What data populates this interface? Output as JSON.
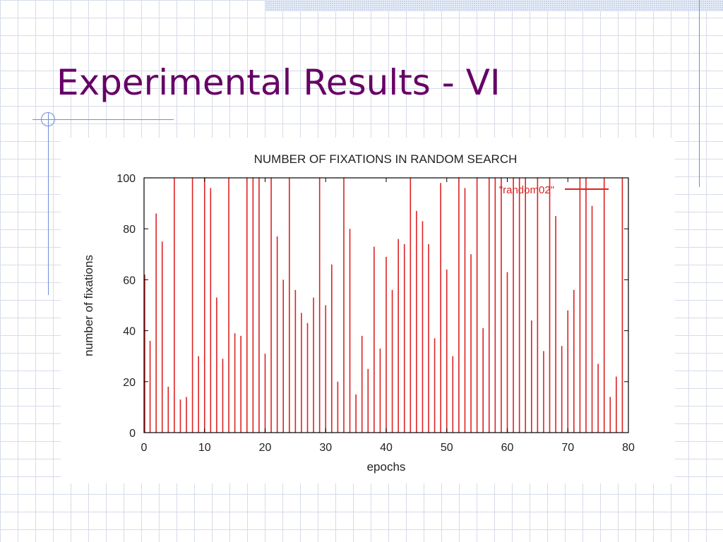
{
  "slide": {
    "title": "Experimental Results - VI"
  },
  "chart_data": {
    "type": "bar",
    "title": "NUMBER OF FIXATIONS IN RANDOM SEARCH",
    "xlabel": "epochs",
    "ylabel": "number of fixations",
    "xlim": [
      0,
      80
    ],
    "ylim": [
      0,
      100
    ],
    "xticks": [
      0,
      10,
      20,
      30,
      40,
      50,
      60,
      70,
      80
    ],
    "yticks": [
      0,
      20,
      40,
      60,
      80,
      100
    ],
    "grid": false,
    "legend_position": "top-right",
    "series": [
      {
        "name": "\"random02\"",
        "color": "#dd2222",
        "x": [
          0,
          1,
          2,
          3,
          4,
          5,
          6,
          7,
          8,
          9,
          10,
          11,
          12,
          13,
          14,
          15,
          16,
          17,
          18,
          19,
          20,
          21,
          22,
          23,
          24,
          25,
          26,
          27,
          28,
          29,
          30,
          31,
          32,
          33,
          34,
          35,
          36,
          37,
          38,
          39,
          40,
          41,
          42,
          43,
          44,
          45,
          46,
          47,
          48,
          49,
          50,
          51,
          52,
          53,
          54,
          55,
          56,
          57,
          58,
          59,
          60,
          61,
          62,
          63,
          64,
          65,
          66,
          67,
          68,
          69,
          70,
          71,
          72,
          73,
          74,
          75,
          76,
          77,
          78,
          79
        ],
        "values": [
          62,
          36,
          86,
          75,
          18,
          100,
          13,
          14,
          100,
          30,
          100,
          96,
          53,
          29,
          100,
          39,
          38,
          100,
          100,
          100,
          31,
          100,
          77,
          60,
          100,
          56,
          47,
          43,
          53,
          100,
          50,
          66,
          20,
          100,
          80,
          15,
          38,
          25,
          73,
          33,
          69,
          56,
          76,
          74,
          100,
          87,
          83,
          74,
          37,
          98,
          64,
          30,
          100,
          96,
          70,
          100,
          41,
          100,
          100,
          100,
          63,
          100,
          100,
          100,
          44,
          100,
          32,
          100,
          85,
          34,
          48,
          56,
          100,
          100,
          89,
          27,
          100,
          14,
          22,
          100
        ]
      }
    ]
  }
}
